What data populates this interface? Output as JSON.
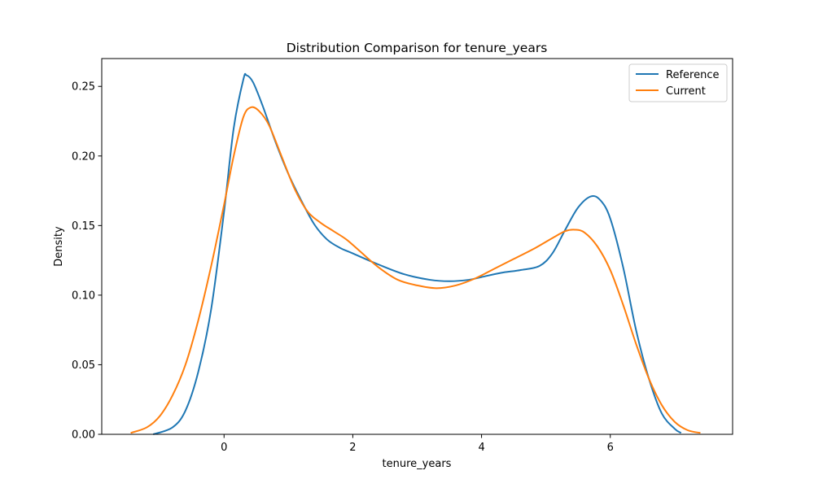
{
  "chart_data": {
    "type": "line",
    "title": "Distribution Comparison for tenure_years",
    "xlabel": "tenure_years",
    "ylabel": "Density",
    "xlim": [
      -1.9,
      7.9
    ],
    "ylim": [
      0.0,
      0.27
    ],
    "x_ticks": [
      0,
      2,
      4,
      6
    ],
    "x_tick_labels": [
      "0",
      "2",
      "4",
      "6"
    ],
    "y_ticks": [
      0.0,
      0.05,
      0.1,
      0.15,
      0.2,
      0.25
    ],
    "y_tick_labels": [
      "0.00",
      "0.05",
      "0.10",
      "0.15",
      "0.20",
      "0.25"
    ],
    "grid": false,
    "legend_position": "top-right",
    "series": [
      {
        "name": "Reference",
        "color": "#1f77b4",
        "points": [
          [
            -1.1,
            0.0
          ],
          [
            -0.8,
            0.005
          ],
          [
            -0.6,
            0.017
          ],
          [
            -0.4,
            0.045
          ],
          [
            -0.2,
            0.09
          ],
          [
            0.0,
            0.16
          ],
          [
            0.15,
            0.22
          ],
          [
            0.3,
            0.255
          ],
          [
            0.35,
            0.258
          ],
          [
            0.45,
            0.253
          ],
          [
            0.6,
            0.236
          ],
          [
            0.8,
            0.21
          ],
          [
            1.0,
            0.187
          ],
          [
            1.2,
            0.168
          ],
          [
            1.4,
            0.151
          ],
          [
            1.6,
            0.14
          ],
          [
            1.8,
            0.134
          ],
          [
            2.0,
            0.13
          ],
          [
            2.4,
            0.122
          ],
          [
            2.8,
            0.115
          ],
          [
            3.2,
            0.111
          ],
          [
            3.5,
            0.11
          ],
          [
            3.8,
            0.111
          ],
          [
            4.0,
            0.113
          ],
          [
            4.3,
            0.116
          ],
          [
            4.6,
            0.118
          ],
          [
            4.9,
            0.121
          ],
          [
            5.1,
            0.13
          ],
          [
            5.3,
            0.147
          ],
          [
            5.5,
            0.163
          ],
          [
            5.7,
            0.171
          ],
          [
            5.85,
            0.168
          ],
          [
            6.0,
            0.155
          ],
          [
            6.2,
            0.12
          ],
          [
            6.4,
            0.075
          ],
          [
            6.6,
            0.04
          ],
          [
            6.8,
            0.015
          ],
          [
            7.0,
            0.004
          ],
          [
            7.1,
            0.001
          ]
        ]
      },
      {
        "name": "Current",
        "color": "#ff7f0e",
        "points": [
          [
            -1.45,
            0.001
          ],
          [
            -1.2,
            0.005
          ],
          [
            -1.0,
            0.013
          ],
          [
            -0.8,
            0.028
          ],
          [
            -0.6,
            0.05
          ],
          [
            -0.4,
            0.082
          ],
          [
            -0.2,
            0.121
          ],
          [
            0.0,
            0.165
          ],
          [
            0.15,
            0.2
          ],
          [
            0.3,
            0.228
          ],
          [
            0.42,
            0.235
          ],
          [
            0.55,
            0.232
          ],
          [
            0.7,
            0.222
          ],
          [
            0.9,
            0.199
          ],
          [
            1.1,
            0.176
          ],
          [
            1.3,
            0.16
          ],
          [
            1.5,
            0.152
          ],
          [
            1.7,
            0.146
          ],
          [
            1.9,
            0.14
          ],
          [
            2.1,
            0.132
          ],
          [
            2.4,
            0.12
          ],
          [
            2.7,
            0.111
          ],
          [
            3.0,
            0.107
          ],
          [
            3.3,
            0.105
          ],
          [
            3.6,
            0.107
          ],
          [
            3.9,
            0.112
          ],
          [
            4.2,
            0.119
          ],
          [
            4.5,
            0.126
          ],
          [
            4.8,
            0.133
          ],
          [
            5.1,
            0.141
          ],
          [
            5.3,
            0.146
          ],
          [
            5.45,
            0.147
          ],
          [
            5.6,
            0.145
          ],
          [
            5.8,
            0.135
          ],
          [
            6.0,
            0.118
          ],
          [
            6.2,
            0.093
          ],
          [
            6.4,
            0.065
          ],
          [
            6.6,
            0.04
          ],
          [
            6.8,
            0.021
          ],
          [
            7.0,
            0.009
          ],
          [
            7.2,
            0.003
          ],
          [
            7.4,
            0.001
          ]
        ]
      }
    ]
  }
}
